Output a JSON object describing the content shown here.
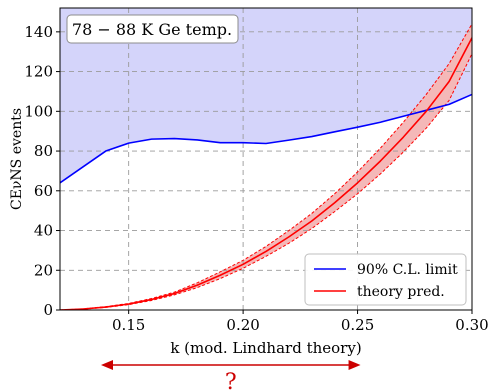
{
  "chart_data": {
    "type": "line",
    "annotation": "78 − 88 K Ge temp.",
    "xlabel": "k (mod. Lindhard theory)",
    "ylabel": "CEνNS events",
    "xlim": [
      0.12,
      0.3
    ],
    "ylim": [
      0,
      152
    ],
    "x_ticks": [
      0.15,
      0.2,
      0.25,
      0.3
    ],
    "y_ticks": [
      0,
      20,
      40,
      60,
      80,
      100,
      120,
      140
    ],
    "x_tick_labels": [
      "0.15",
      "0.20",
      "0.25",
      "0.30"
    ],
    "y_tick_labels": [
      "0",
      "20",
      "40",
      "60",
      "80",
      "100",
      "120",
      "140"
    ],
    "grid": true,
    "legend_position": "bottom-right",
    "series": [
      {
        "name": "90% C.L. limit",
        "color": "#0000ff",
        "fill_above": "#d4d4fa",
        "x": [
          0.12,
          0.13,
          0.14,
          0.15,
          0.16,
          0.17,
          0.18,
          0.19,
          0.2,
          0.21,
          0.22,
          0.23,
          0.24,
          0.25,
          0.26,
          0.27,
          0.28,
          0.29,
          0.3
        ],
        "y": [
          64,
          72,
          80,
          84,
          86,
          86.3,
          85.6,
          84.2,
          84.2,
          83.8,
          85.5,
          87.3,
          89.7,
          92,
          94.5,
          97.5,
          100.5,
          103.5,
          108.5
        ]
      },
      {
        "name": "theory pred.",
        "color": "#ff0000",
        "band_color": "#f4b8b8",
        "x": [
          0.12,
          0.13,
          0.14,
          0.15,
          0.16,
          0.17,
          0.18,
          0.19,
          0.2,
          0.21,
          0.22,
          0.23,
          0.24,
          0.25,
          0.26,
          0.27,
          0.28,
          0.29,
          0.3
        ],
        "y": [
          0,
          0.5,
          1.5,
          3,
          5.3,
          8.3,
          12.5,
          17.5,
          23,
          29.5,
          36.8,
          44.8,
          54,
          64,
          75,
          87,
          100,
          115,
          137
        ],
        "band_lower": [
          0,
          0.4,
          1.3,
          2.7,
          4.8,
          7.6,
          11.3,
          15.8,
          21,
          27,
          33.6,
          41,
          49.5,
          58.5,
          68.5,
          79.5,
          91.5,
          105.5,
          129
        ],
        "band_upper": [
          0,
          0.6,
          1.7,
          3.3,
          5.8,
          9,
          13.7,
          19.2,
          25,
          32,
          40,
          48.6,
          58.5,
          69.5,
          81.5,
          94.5,
          108.5,
          124,
          144
        ]
      }
    ],
    "range_arrow": {
      "from": 0.12,
      "to": 0.25,
      "label": "?",
      "color": "#cc0000"
    }
  }
}
